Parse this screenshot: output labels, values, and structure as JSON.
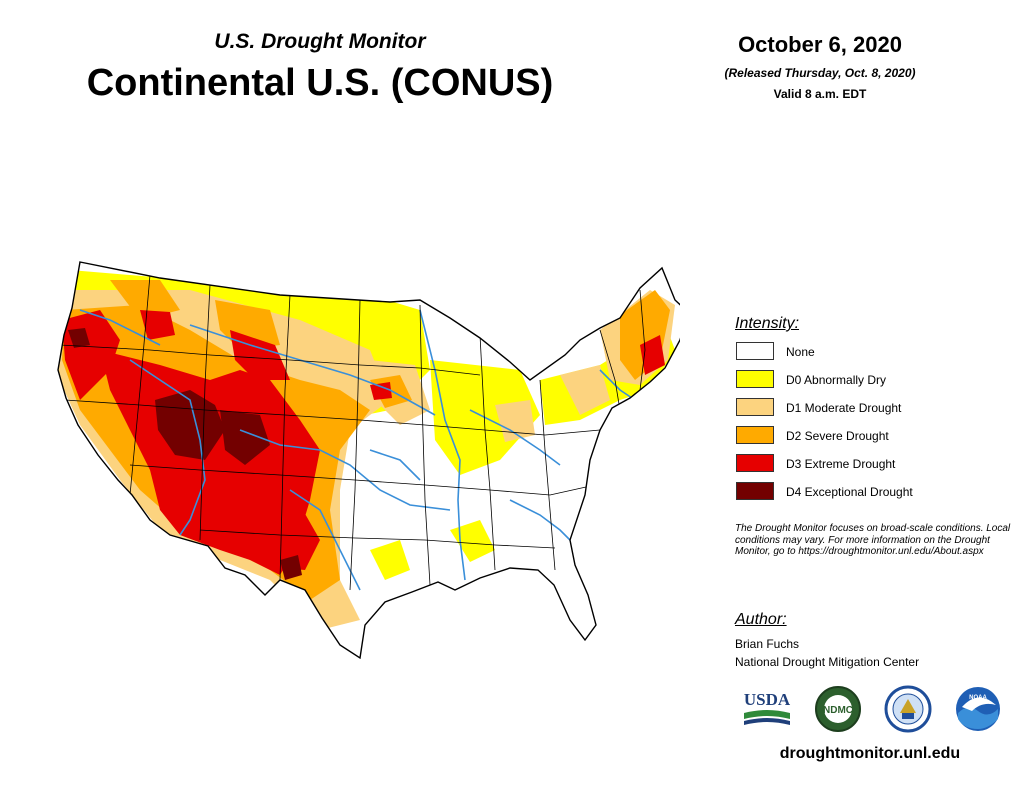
{
  "header": {
    "subtitle": "U.S. Drought Monitor",
    "title": "Continental U.S. (CONUS)",
    "date": "October 6, 2020",
    "released": "(Released Thursday, Oct. 8, 2020)",
    "valid": "Valid 8 a.m. EDT"
  },
  "legend": {
    "title": "Intensity:",
    "items": [
      {
        "label": "None",
        "color": "#ffffff"
      },
      {
        "label": "D0 Abnormally Dry",
        "color": "#ffff00"
      },
      {
        "label": "D1 Moderate Drought",
        "color": "#fcd37f"
      },
      {
        "label": "D2 Severe Drought",
        "color": "#ffaa00"
      },
      {
        "label": "D3 Extreme Drought",
        "color": "#e60000"
      },
      {
        "label": "D4 Exceptional Drought",
        "color": "#730000"
      }
    ]
  },
  "note": "The Drought Monitor focuses on broad-scale conditions. Local conditions may vary. For more information on the Drought Monitor, go to https://droughtmonitor.unl.edu/About.aspx",
  "author": {
    "title": "Author:",
    "name": "Brian Fuchs",
    "org": "National Drought Mitigation Center"
  },
  "logos": {
    "usda": "USDA",
    "ndmc": "NDMC",
    "noaa": "NOAA"
  },
  "website": "droughtmonitor.unl.edu",
  "colors": {
    "river": "#3a8fd9",
    "border": "#000000"
  }
}
